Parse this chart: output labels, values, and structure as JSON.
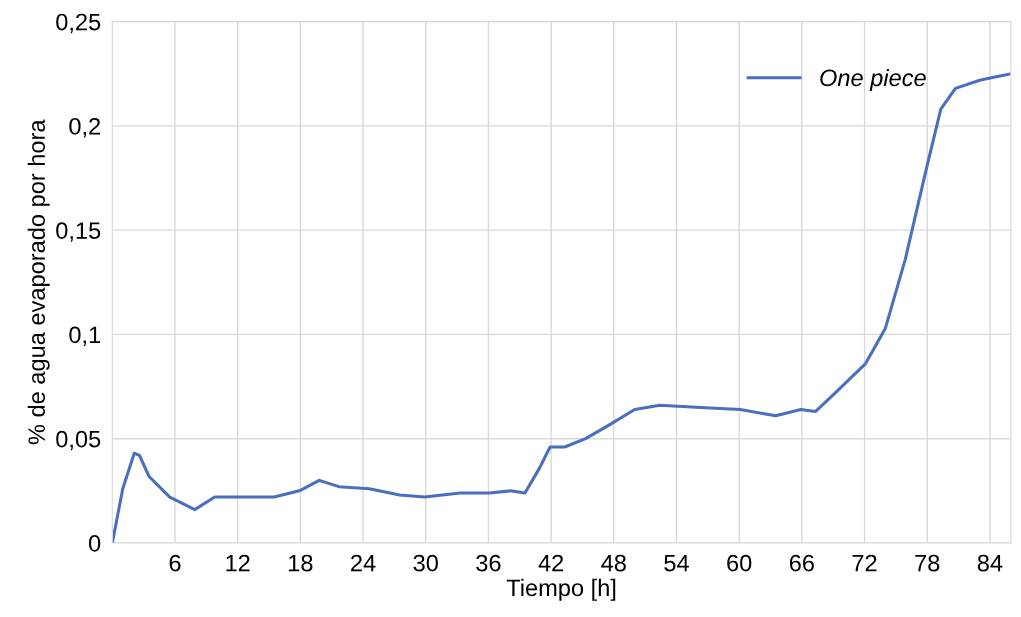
{
  "chart_data": {
    "type": "line",
    "xlabel": "Tiempo [h]",
    "ylabel": "% de agua evaporado por hora",
    "xlim": [
      0,
      86
    ],
    "xticks": [
      6,
      12,
      18,
      24,
      30,
      36,
      42,
      48,
      54,
      60,
      66,
      72,
      78,
      84
    ],
    "ylim": [
      0,
      0.25
    ],
    "yticks": [
      {
        "value": 0,
        "label": "0"
      },
      {
        "value": 0.05,
        "label": "0,05"
      },
      {
        "value": 0.1,
        "label": "0,1"
      },
      {
        "value": 0.15,
        "label": "0,15"
      },
      {
        "value": 0.2,
        "label": "0,2"
      },
      {
        "value": 0.25,
        "label": "0,25"
      }
    ],
    "grid": true,
    "legend": "top right",
    "marker": "none",
    "line_style": "solid",
    "series": [
      {
        "name": "One piece",
        "color": "#4a6fbe",
        "x": [
          0,
          1,
          2.1,
          2.6,
          3.5,
          5.5,
          7.9,
          9.8,
          12.2,
          15.5,
          17.9,
          19.8,
          21.7,
          24.6,
          27.5,
          29.9,
          33.3,
          36.1,
          38.1,
          39.5,
          40.9,
          41.9,
          43.3,
          45.3,
          47.7,
          50,
          52.4,
          56.3,
          60.1,
          63.5,
          65.9,
          67.3,
          69.2,
          72.1,
          74,
          75.9,
          77.9,
          79.3,
          80.7,
          83.1,
          86
        ],
        "values": [
          0,
          0.026,
          0.043,
          0.042,
          0.032,
          0.022,
          0.016,
          0.022,
          0.022,
          0.022,
          0.025,
          0.03,
          0.027,
          0.026,
          0.023,
          0.022,
          0.024,
          0.024,
          0.025,
          0.024,
          0.036,
          0.046,
          0.046,
          0.05,
          0.057,
          0.064,
          0.066,
          0.065,
          0.064,
          0.061,
          0.064,
          0.063,
          0.072,
          0.086,
          0.103,
          0.136,
          0.179,
          0.208,
          0.218,
          0.222,
          0.225
        ]
      }
    ]
  }
}
